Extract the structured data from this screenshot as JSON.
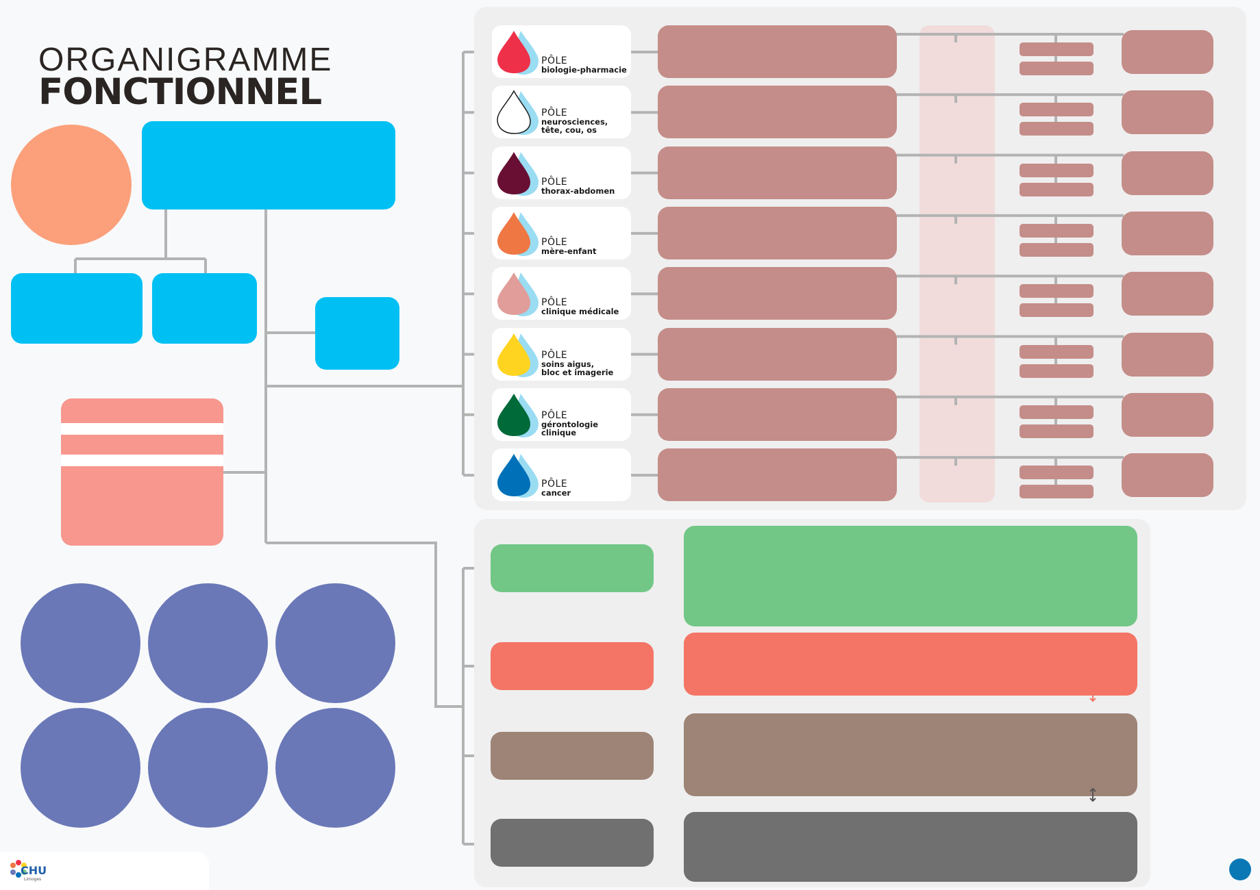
{
  "title": {
    "line1": "ORGANIGRAMME",
    "line2": "FONCTIONNEL"
  },
  "logo": {
    "name": "CHU",
    "city": "Limoges"
  },
  "colors": {
    "panel": "#efefef",
    "wire": "#b3b3b3",
    "blue": "#00c0f3",
    "peach": "#fba07a",
    "salmon": "#f7978d",
    "purple": "#6a78b7",
    "pole_bar": "#c48d89",
    "pole_column": "#f1dcdb",
    "green": "#72c786",
    "red": "#f47565",
    "brown": "#9d8477",
    "gray": "#707070",
    "corner_dot": "#0a78b5"
  },
  "poles": [
    {
      "prefix": "PÔLE",
      "name": "biologie-pharmacie",
      "color": "#ee3048",
      "icon": "drop-icon"
    },
    {
      "prefix": "PÔLE",
      "name": "neurosciences,\ntête, cou, os",
      "color": "#ffffff",
      "icon": "drop-icon"
    },
    {
      "prefix": "PÔLE",
      "name": "thorax-abdomen",
      "color": "#690f33",
      "icon": "drop-icon"
    },
    {
      "prefix": "PÔLE",
      "name": "mère-enfant",
      "color": "#ee7744",
      "icon": "drop-icon"
    },
    {
      "prefix": "PÔLE",
      "name": "clinique médicale",
      "color": "#e19d9a",
      "icon": "drop-icon"
    },
    {
      "prefix": "PÔLE",
      "name": "soins aigus,\nbloc et imagerie",
      "color": "#ffd421",
      "icon": "drop-icon"
    },
    {
      "prefix": "PÔLE",
      "name": "gérontologie\nclinique",
      "color": "#006a39",
      "icon": "drop-icon"
    },
    {
      "prefix": "PÔLE",
      "name": "cancer",
      "color": "#0070b8",
      "icon": "drop-icon"
    }
  ]
}
